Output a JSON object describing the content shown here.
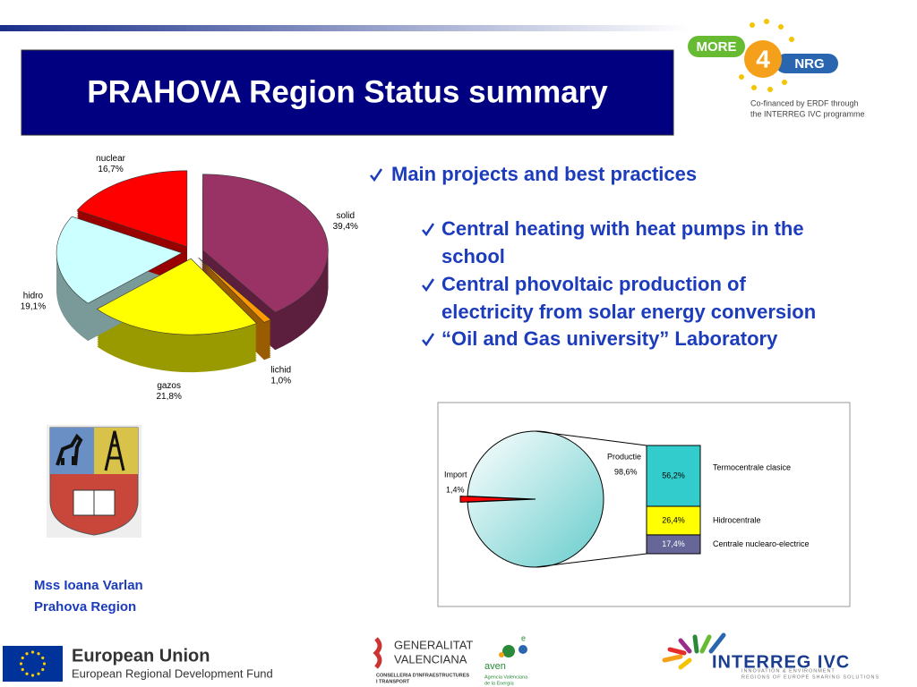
{
  "header": {
    "title": "PRAHOVA Region Status summary"
  },
  "bullets": {
    "main": "Main projects and best practices",
    "items": [
      {
        "lines": [
          "Central heating with heat pumps in the",
          "school"
        ]
      },
      {
        "lines": [
          "Central phovoltaic production of",
          "electricity from solar energy conversion"
        ]
      },
      {
        "lines": [
          "“Oil and Gas university” Laboratory"
        ]
      }
    ]
  },
  "author": {
    "name": "Mss Ioana Varlan",
    "region": "Prahova Region"
  },
  "logos": {
    "more4nrg": {
      "more": "MORE",
      "four": "4",
      "nrg": "NRG",
      "cofinanced": [
        "Co-financed by ERDF through",
        "the INTERREG IVC programme"
      ]
    },
    "eu": {
      "title": "European Union",
      "subtitle": "European Regional Development Fund"
    },
    "generalitat": {
      "lines": [
        "GENERALITAT",
        "VALENCIANA"
      ],
      "dept": [
        "CONSELLERIA D'INFRAESTRUCTURES",
        "I TRANSPORT"
      ]
    },
    "aven": {
      "name": "aven",
      "sup": "e",
      "lines": [
        "Agencia Valenciana",
        "de la Energía"
      ]
    },
    "interreg": {
      "name": "INTERREG IVC",
      "lines": [
        "INNOVATION & ENVIRONMENT",
        "REGIONS OF EUROPE SHARING SOLUTIONS"
      ]
    }
  },
  "chart_data": [
    {
      "type": "pie3d",
      "categories": [
        "solid",
        "lichid",
        "gazos",
        "hidro",
        "nuclear"
      ],
      "values": [
        39.4,
        1.0,
        21.8,
        19.1,
        16.7
      ],
      "value_labels": [
        "39,4%",
        "1,0%",
        "21,8%",
        "19,1%",
        "16,7%"
      ],
      "colors": [
        "#993366",
        "#ff9900",
        "#ffff00",
        "#ccffff",
        "#ff0000"
      ]
    },
    {
      "type": "bar-of-pie",
      "pie": {
        "categories": [
          "Import",
          "Productie"
        ],
        "values": [
          1.4,
          98.6
        ],
        "value_labels": [
          "1,4%",
          "98,6%"
        ],
        "colors": [
          "#ff0000",
          "#66cccc"
        ]
      },
      "bar": {
        "categories": [
          "Termocentrale clasice",
          "Hidrocentrale",
          "Centrale nuclearo-electrice"
        ],
        "values": [
          56.2,
          26.4,
          17.4
        ],
        "value_labels": [
          "56,2%",
          "26,4%",
          "17,4%"
        ],
        "colors": [
          "#33cccc",
          "#ffff00",
          "#666699"
        ]
      }
    }
  ]
}
